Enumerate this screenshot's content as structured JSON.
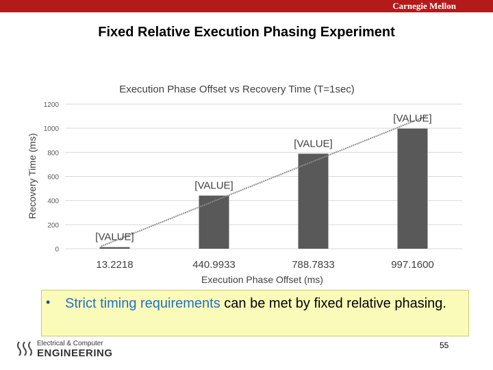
{
  "header": {
    "brand": "Carnegie Mellon"
  },
  "slide": {
    "title": "Fixed Relative Execution Phasing Experiment",
    "page_number": "55"
  },
  "note": {
    "bullet": "•",
    "text_highlight": "Strict timing requirements",
    "text_rest": " can be met by fixed relative phasing."
  },
  "footer": {
    "logo_line1": "Electrical & Computer",
    "logo_line2": "ENGINEERING"
  },
  "colors": {
    "bar": "#595959",
    "brand": "#b31b1b",
    "highlight": "#1f6fc9",
    "note_bg": "#fbfbb9"
  },
  "chart_data": {
    "type": "bar",
    "title": "Execution Phase Offset vs Recovery Time (T=1sec)",
    "xlabel": "Execution Phase Offset (ms)",
    "ylabel": "Recovery Time (ms)",
    "categories": [
      "13.2218",
      "440.9933",
      "788.7833",
      "997.1600"
    ],
    "values": [
      13.2218,
      440.9933,
      788.7833,
      997.16
    ],
    "data_labels": [
      "[VALUE]",
      "[VALUE]",
      "[VALUE]",
      "[VALUE]"
    ],
    "ylim": [
      0,
      1200
    ],
    "yticks": [
      0,
      200,
      400,
      600,
      800,
      1000,
      1200
    ],
    "grid": true,
    "trendline": "linear"
  }
}
